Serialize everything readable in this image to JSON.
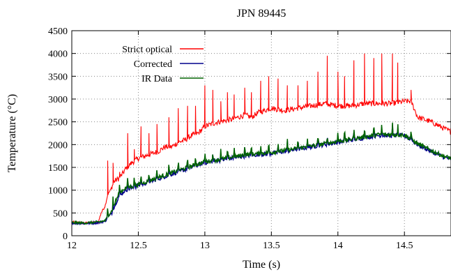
{
  "chart_data": {
    "type": "line",
    "title": "JPN 89445",
    "xlabel": "Time (s)",
    "ylabel": "Temperature (°C)",
    "xlim": [
      12,
      14.85
    ],
    "ylim": [
      0,
      4500
    ],
    "x_ticks": [
      12,
      12.5,
      13,
      13.5,
      14,
      14.5
    ],
    "x_tick_labels": [
      "12",
      "12.5",
      "13",
      "13.5",
      "14",
      "14.5"
    ],
    "y_ticks": [
      0,
      500,
      1000,
      1500,
      2000,
      2500,
      3000,
      3500,
      4000,
      4500
    ],
    "y_tick_labels": [
      "0",
      "500",
      "1000",
      "1500",
      "2000",
      "2500",
      "3000",
      "3500",
      "4000",
      "4500"
    ],
    "grid": true,
    "legend_position": "top-left",
    "colors": {
      "strict_optical": "#ff0000",
      "corrected": "#00008b",
      "ir_data": "#006400"
    },
    "series": [
      {
        "name": "Strict optical",
        "color": "#ff0000",
        "x": [
          12.0,
          12.1,
          12.2,
          12.22,
          12.25,
          12.27,
          12.29,
          12.32,
          12.35,
          12.38,
          12.4,
          12.45,
          12.5,
          12.55,
          12.6,
          12.65,
          12.7,
          12.75,
          12.8,
          12.85,
          12.9,
          12.95,
          13.0,
          13.1,
          13.2,
          13.3,
          13.35,
          13.4,
          13.5,
          13.6,
          13.7,
          13.8,
          13.9,
          14.0,
          14.1,
          14.2,
          14.3,
          14.4,
          14.5,
          14.55,
          14.6,
          14.7,
          14.8,
          14.85
        ],
        "y": [
          300,
          280,
          300,
          500,
          650,
          900,
          1000,
          1200,
          1250,
          1350,
          1450,
          1600,
          1700,
          1750,
          1800,
          1850,
          1950,
          1950,
          2050,
          2100,
          2200,
          2250,
          2400,
          2500,
          2550,
          2650,
          2600,
          2700,
          2800,
          2750,
          2800,
          2850,
          2900,
          2850,
          2850,
          2900,
          2900,
          2900,
          2950,
          2950,
          2600,
          2500,
          2350,
          2280
        ],
        "spikes": [
          {
            "x": 12.27,
            "y": 1650
          },
          {
            "x": 12.31,
            "y": 1600
          },
          {
            "x": 12.36,
            "y": 1400
          },
          {
            "x": 12.42,
            "y": 2250
          },
          {
            "x": 12.47,
            "y": 1900
          },
          {
            "x": 12.52,
            "y": 2400
          },
          {
            "x": 12.58,
            "y": 2250
          },
          {
            "x": 12.64,
            "y": 2450
          },
          {
            "x": 12.73,
            "y": 2600
          },
          {
            "x": 12.8,
            "y": 2800
          },
          {
            "x": 12.87,
            "y": 2850
          },
          {
            "x": 12.93,
            "y": 2850
          },
          {
            "x": 13.0,
            "y": 3300
          },
          {
            "x": 13.06,
            "y": 3200
          },
          {
            "x": 13.12,
            "y": 2950
          },
          {
            "x": 13.17,
            "y": 3150
          },
          {
            "x": 13.22,
            "y": 3100
          },
          {
            "x": 13.3,
            "y": 3250
          },
          {
            "x": 13.35,
            "y": 3150
          },
          {
            "x": 13.42,
            "y": 3400
          },
          {
            "x": 13.48,
            "y": 3500
          },
          {
            "x": 13.55,
            "y": 3450
          },
          {
            "x": 13.62,
            "y": 3300
          },
          {
            "x": 13.7,
            "y": 3300
          },
          {
            "x": 13.77,
            "y": 3400
          },
          {
            "x": 13.85,
            "y": 3600
          },
          {
            "x": 13.92,
            "y": 3950
          },
          {
            "x": 14.0,
            "y": 3600
          },
          {
            "x": 14.05,
            "y": 3500
          },
          {
            "x": 14.12,
            "y": 3850
          },
          {
            "x": 14.2,
            "y": 4000
          },
          {
            "x": 14.27,
            "y": 3900
          },
          {
            "x": 14.33,
            "y": 4000
          },
          {
            "x": 14.41,
            "y": 4000
          },
          {
            "x": 14.45,
            "y": 3800
          },
          {
            "x": 14.55,
            "y": 3200
          }
        ]
      },
      {
        "name": "Corrected",
        "color": "#00008b",
        "x": [
          12.0,
          12.1,
          12.2,
          12.25,
          12.3,
          12.35,
          12.4,
          12.45,
          12.5,
          12.6,
          12.7,
          12.8,
          12.9,
          13.0,
          13.1,
          13.2,
          13.3,
          13.4,
          13.5,
          13.6,
          13.7,
          13.8,
          13.9,
          14.0,
          14.1,
          14.2,
          14.3,
          14.4,
          14.5,
          14.6,
          14.7,
          14.8,
          14.85
        ],
        "y": [
          280,
          270,
          290,
          320,
          500,
          850,
          1000,
          1050,
          1100,
          1200,
          1300,
          1400,
          1500,
          1600,
          1650,
          1700,
          1750,
          1780,
          1800,
          1850,
          1900,
          1950,
          2000,
          2050,
          2100,
          2150,
          2200,
          2200,
          2200,
          2000,
          1850,
          1720,
          1680
        ]
      },
      {
        "name": "IR Data",
        "color": "#006400",
        "x": [
          12.0,
          12.1,
          12.2,
          12.25,
          12.3,
          12.35,
          12.4,
          12.45,
          12.5,
          12.6,
          12.7,
          12.8,
          12.9,
          13.0,
          13.1,
          13.2,
          13.3,
          13.4,
          13.5,
          13.6,
          13.7,
          13.8,
          13.9,
          14.0,
          14.1,
          14.2,
          14.3,
          14.4,
          14.5,
          14.6,
          14.7,
          14.8,
          14.85
        ],
        "y": [
          290,
          280,
          300,
          330,
          550,
          900,
          1050,
          1080,
          1120,
          1230,
          1330,
          1430,
          1530,
          1620,
          1670,
          1720,
          1780,
          1800,
          1830,
          1870,
          1920,
          1970,
          2020,
          2070,
          2120,
          2170,
          2220,
          2220,
          2210,
          2020,
          1870,
          1740,
          1700
        ]
      }
    ]
  }
}
